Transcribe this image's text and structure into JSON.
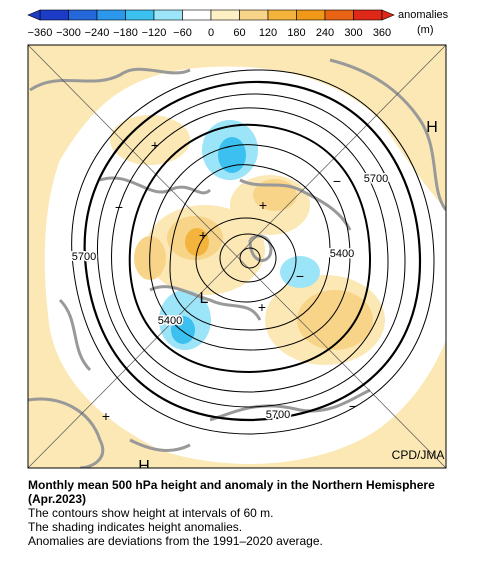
{
  "colorbar": {
    "ticks": [
      "−360",
      "−300",
      "−240",
      "−180",
      "−120",
      "−60",
      "0",
      "60",
      "120",
      "180",
      "240",
      "300",
      "360"
    ],
    "colors": [
      "#1c3cc8",
      "#2468dc",
      "#2c98ec",
      "#3cc0f0",
      "#9ce4f8",
      "#ffffff",
      "#fcf0c4",
      "#f8d488",
      "#f4b43c",
      "#f09818",
      "#e86414",
      "#e02818"
    ],
    "low_end_color": "#1c3cc8",
    "high_end_color": "#e02818",
    "label": "anomalies",
    "unit": "(m)"
  },
  "map": {
    "labels": [
      "H",
      "5700",
      "5700",
      "5400",
      "5400",
      "L",
      "5700",
      "H",
      "+",
      "+",
      "+",
      "+",
      "+",
      "−",
      "−",
      "−",
      "−"
    ],
    "credit": "CPD/JMA"
  },
  "caption": {
    "title": "Monthly mean 500 hPa height and anomaly in the Northern Hemisphere (Apr.2023)",
    "lines": [
      "The contours show height at intervals of 60 m.",
      "The shading indicates height anomalies.",
      "Anomalies are deviations from the 1991–2020 average."
    ]
  }
}
